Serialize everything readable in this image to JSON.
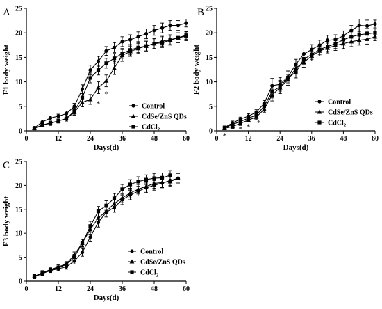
{
  "chart_data": [
    {
      "type": "line",
      "panel": "A",
      "xlabel": "Days(d)",
      "ylabel": "F1 body weight",
      "xlim": [
        0,
        60
      ],
      "ylim": [
        0,
        25
      ],
      "xticks": [
        0,
        12,
        24,
        36,
        48,
        60
      ],
      "yticks": [
        0,
        5,
        10,
        15,
        20,
        25
      ],
      "legend": [
        "Control",
        "CdSe/ZnS QDs",
        "CdCl2"
      ],
      "significance": [
        {
          "x": 27,
          "y": 5.6,
          "label": "*"
        },
        {
          "x": 30,
          "y": 7.6,
          "label": "*"
        }
      ],
      "series": [
        {
          "name": "Control",
          "marker": "circle",
          "x": [
            3,
            6,
            9,
            12,
            15,
            18,
            21,
            24,
            27,
            30,
            33,
            36,
            39,
            42,
            45,
            48,
            51,
            54,
            57,
            60
          ],
          "y": [
            0.6,
            1.8,
            2.6,
            3.0,
            3.5,
            5.0,
            8.5,
            12.4,
            14.2,
            16.3,
            17.0,
            18.2,
            18.6,
            19.2,
            19.8,
            20.5,
            21.0,
            21.5,
            21.5,
            22.0
          ],
          "err": [
            0.3,
            0.4,
            0.4,
            0.4,
            0.5,
            0.6,
            0.9,
            1.0,
            1.0,
            0.9,
            1.0,
            1.0,
            1.0,
            1.0,
            1.0,
            1.0,
            1.0,
            1.0,
            1.0,
            0.8
          ]
        },
        {
          "name": "CdSe/ZnS QDs",
          "marker": "triangle",
          "x": [
            3,
            6,
            9,
            12,
            15,
            18,
            21,
            24,
            27,
            30,
            33,
            36,
            39,
            42,
            45,
            48,
            51,
            54,
            57,
            60
          ],
          "y": [
            0.5,
            1.2,
            1.5,
            2.0,
            2.5,
            3.8,
            5.8,
            6.4,
            8.8,
            10.2,
            12.8,
            15.4,
            16.2,
            16.8,
            17.3,
            17.8,
            18.3,
            18.6,
            19.0,
            19.3
          ],
          "err": [
            0.3,
            0.4,
            0.4,
            0.4,
            0.5,
            0.6,
            0.9,
            1.0,
            1.2,
            1.2,
            1.3,
            1.2,
            1.0,
            1.0,
            1.0,
            1.0,
            1.0,
            1.0,
            1.0,
            0.9
          ]
        },
        {
          "name": "CdCl2",
          "marker": "square",
          "x": [
            3,
            6,
            9,
            12,
            15,
            18,
            21,
            24,
            27,
            30,
            33,
            36,
            39,
            42,
            45,
            48,
            51,
            54,
            57,
            60
          ],
          "y": [
            0.5,
            1.2,
            1.6,
            2.0,
            2.5,
            4.0,
            6.8,
            10.8,
            12.4,
            13.8,
            14.8,
            15.8,
            16.5,
            17.0,
            17.3,
            17.8,
            18.0,
            18.5,
            19.0,
            19.5
          ],
          "err": [
            0.3,
            0.4,
            0.4,
            0.4,
            0.5,
            0.6,
            0.9,
            1.0,
            1.0,
            1.0,
            1.0,
            1.0,
            1.0,
            1.0,
            1.0,
            1.0,
            1.0,
            1.0,
            1.0,
            0.8
          ]
        }
      ]
    },
    {
      "type": "line",
      "panel": "B",
      "xlabel": "Days(d)",
      "ylabel": "F2 body weight",
      "xlim": [
        0,
        60
      ],
      "ylim": [
        0,
        25
      ],
      "xticks": [
        0,
        12,
        24,
        36,
        48,
        60
      ],
      "yticks": [
        0,
        5,
        10,
        15,
        20,
        25
      ],
      "legend": [
        "Control",
        "CdSe/ZnS QDs",
        "CdCl2"
      ],
      "significance": [
        {
          "x": 3,
          "y": -0.9,
          "label": "*"
        },
        {
          "x": 9,
          "y": 0.4,
          "label": "*"
        },
        {
          "x": 12,
          "y": 0.9,
          "label": "*"
        },
        {
          "x": 16,
          "y": 1.7,
          "label": "*"
        }
      ],
      "series": [
        {
          "name": "Control",
          "marker": "circle",
          "x": [
            3,
            6,
            9,
            12,
            15,
            18,
            21,
            24,
            27,
            30,
            33,
            36,
            39,
            42,
            45,
            48,
            51,
            54,
            57,
            60
          ],
          "y": [
            0.7,
            1.6,
            2.4,
            3.0,
            3.8,
            5.6,
            9.2,
            9.5,
            11.0,
            13.6,
            15.7,
            16.6,
            17.5,
            18.5,
            18.6,
            19.4,
            20.5,
            21.5,
            21.4,
            21.8
          ],
          "err": [
            0.3,
            0.4,
            0.4,
            0.5,
            0.5,
            0.6,
            1.5,
            1.4,
            1.2,
            1.0,
            1.0,
            1.0,
            1.0,
            1.0,
            1.0,
            1.0,
            1.0,
            1.3,
            1.2,
            0.8
          ]
        },
        {
          "name": "CdSe/ZnS QDs",
          "marker": "triangle",
          "x": [
            3,
            6,
            9,
            12,
            15,
            18,
            21,
            24,
            27,
            30,
            33,
            36,
            39,
            42,
            45,
            48,
            51,
            54,
            57,
            60
          ],
          "y": [
            0.5,
            0.9,
            1.5,
            2.2,
            2.8,
            4.4,
            7.3,
            8.8,
            10.4,
            12.8,
            14.0,
            15.3,
            16.3,
            16.9,
            17.4,
            17.8,
            18.2,
            18.5,
            18.7,
            19.2
          ],
          "err": [
            0.3,
            0.4,
            0.4,
            0.4,
            0.5,
            0.6,
            1.2,
            1.2,
            1.1,
            1.0,
            1.0,
            1.0,
            1.0,
            1.0,
            1.0,
            1.0,
            1.0,
            1.0,
            1.0,
            0.8
          ]
        },
        {
          "name": "CdCl2",
          "marker": "square",
          "x": [
            3,
            6,
            9,
            12,
            15,
            18,
            21,
            24,
            27,
            30,
            33,
            36,
            39,
            42,
            45,
            48,
            51,
            54,
            57,
            60
          ],
          "y": [
            0.6,
            1.3,
            1.9,
            2.6,
            3.2,
            5.0,
            8.0,
            9.0,
            10.8,
            12.0,
            14.6,
            15.6,
            16.6,
            17.2,
            17.8,
            18.6,
            19.2,
            19.6,
            19.8,
            20.0
          ],
          "err": [
            0.3,
            0.4,
            0.4,
            0.4,
            0.5,
            0.6,
            1.3,
            1.3,
            1.6,
            1.2,
            1.0,
            1.0,
            1.0,
            1.0,
            1.0,
            1.0,
            1.0,
            1.2,
            1.1,
            0.8
          ]
        }
      ]
    },
    {
      "type": "line",
      "panel": "C",
      "xlabel": "Days(d)",
      "ylabel": "F3 body weight",
      "xlim": [
        0,
        60
      ],
      "ylim": [
        0,
        25
      ],
      "xticks": [
        0,
        12,
        24,
        36,
        48,
        60
      ],
      "yticks": [
        0,
        5,
        10,
        15,
        20,
        25
      ],
      "legend": [
        "Control",
        "CdSe/ZnS QDs",
        "CdCl2"
      ],
      "significance": [],
      "series": [
        {
          "name": "Control",
          "marker": "circle",
          "x": [
            3,
            6,
            9,
            12,
            15,
            18,
            21,
            24,
            27,
            30,
            33,
            36,
            39,
            42,
            45,
            48,
            51,
            54,
            57
          ],
          "y": [
            0.9,
            1.6,
            2.2,
            2.6,
            3.0,
            4.2,
            6.0,
            9.2,
            12.3,
            14.4,
            15.4,
            17.0,
            18.0,
            18.8,
            19.5,
            20.0,
            20.5,
            21.0,
            21.5
          ],
          "err": [
            0.4,
            0.4,
            0.4,
            0.4,
            0.5,
            0.6,
            0.8,
            1.0,
            1.0,
            1.0,
            1.0,
            1.0,
            1.0,
            1.0,
            1.0,
            1.0,
            1.0,
            1.0,
            1.0
          ]
        },
        {
          "name": "CdSe/ZnS QDs",
          "marker": "triangle",
          "x": [
            3,
            6,
            9,
            12,
            15,
            18,
            21,
            24,
            27,
            30,
            33,
            36,
            39,
            42,
            45,
            48,
            51,
            54,
            57
          ],
          "y": [
            1.0,
            1.8,
            2.4,
            3.0,
            3.6,
            5.5,
            8.0,
            10.8,
            13.2,
            14.6,
            16.2,
            17.4,
            18.4,
            19.2,
            19.8,
            20.4,
            20.6,
            20.8,
            21.5
          ],
          "err": [
            0.4,
            0.4,
            0.4,
            0.4,
            0.5,
            0.6,
            0.8,
            1.0,
            1.1,
            1.0,
            1.0,
            1.0,
            1.0,
            1.0,
            1.0,
            1.0,
            1.0,
            1.0,
            1.0
          ]
        },
        {
          "name": "CdCl2",
          "marker": "square",
          "x": [
            3,
            6,
            9,
            12,
            15,
            18,
            21,
            24,
            27,
            30,
            33,
            36,
            39,
            42,
            45,
            48,
            51,
            54
          ],
          "y": [
            1.0,
            1.6,
            2.3,
            2.8,
            3.5,
            5.0,
            7.9,
            11.5,
            14.6,
            15.8,
            17.3,
            19.2,
            20.2,
            20.8,
            21.2,
            21.5,
            21.6,
            22.1
          ],
          "err": [
            0.4,
            0.4,
            0.4,
            0.4,
            0.5,
            0.6,
            0.8,
            1.0,
            1.0,
            1.0,
            1.0,
            1.0,
            1.0,
            1.0,
            1.0,
            1.0,
            1.0,
            1.0
          ]
        }
      ]
    }
  ]
}
